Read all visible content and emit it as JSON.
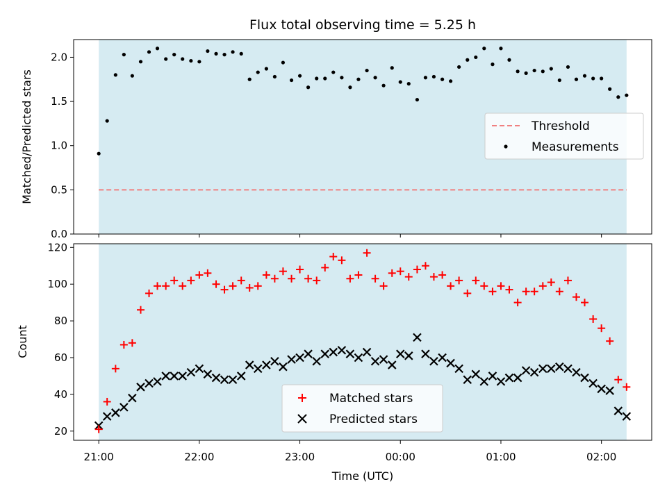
{
  "title": "Flux total observing time = 5.25 h",
  "colors": {
    "band": "#add8e6",
    "threshold": "#f08080",
    "matched": "#ff0000",
    "predicted": "#000000",
    "measurement": "#000000"
  },
  "chart_data": [
    {
      "type": "scatter",
      "ylabel": "Matched/Predicted stars",
      "xlabel": "",
      "xlim": [
        -0.25,
        5.5
      ],
      "ylim": [
        0.0,
        2.2
      ],
      "yticks": [
        "0.0",
        "0.5",
        "1.0",
        "1.5",
        "2.0"
      ],
      "shaded_interval": [
        0.0,
        5.25
      ],
      "threshold": 0.5,
      "legend": {
        "position": "center-right",
        "entries": [
          "Threshold",
          "Measurements"
        ]
      },
      "series": [
        {
          "name": "Measurements",
          "x": [
            0.0,
            0.083,
            0.167,
            0.25,
            0.333,
            0.417,
            0.5,
            0.583,
            0.667,
            0.75,
            0.833,
            0.917,
            1.0,
            1.083,
            1.167,
            1.25,
            1.333,
            1.417,
            1.5,
            1.583,
            1.667,
            1.75,
            1.833,
            1.917,
            2.0,
            2.083,
            2.167,
            2.25,
            2.333,
            2.417,
            2.5,
            2.583,
            2.667,
            2.75,
            2.833,
            2.917,
            3.0,
            3.083,
            3.167,
            3.25,
            3.333,
            3.417,
            3.5,
            3.583,
            3.667,
            3.75,
            3.833,
            3.917,
            4.0,
            4.083,
            4.167,
            4.25,
            4.333,
            4.417,
            4.5,
            4.583,
            4.667,
            4.75,
            4.833,
            4.917,
            5.0,
            5.083,
            5.167,
            5.25
          ],
          "y": [
            0.91,
            1.28,
            1.8,
            2.03,
            1.79,
            1.95,
            2.06,
            2.1,
            1.98,
            2.03,
            1.98,
            1.96,
            1.95,
            2.07,
            2.04,
            2.03,
            2.06,
            2.04,
            1.75,
            1.83,
            1.87,
            1.78,
            1.94,
            1.74,
            1.79,
            1.66,
            1.76,
            1.76,
            1.83,
            1.77,
            1.66,
            1.75,
            1.85,
            1.77,
            1.68,
            1.88,
            1.72,
            1.7,
            1.52,
            1.77,
            1.78,
            1.75,
            1.73,
            1.89,
            1.97,
            2.0,
            2.1,
            1.92,
            2.1,
            1.97,
            1.84,
            1.82,
            1.85,
            1.84,
            1.87,
            1.74,
            1.89,
            1.75,
            1.79,
            1.76,
            1.76,
            1.64,
            1.55,
            1.57
          ]
        }
      ]
    },
    {
      "type": "scatter",
      "ylabel": "Count",
      "xlabel": "Time (UTC)",
      "xlim": [
        -0.25,
        5.5
      ],
      "ylim": [
        15,
        122
      ],
      "yticks": [
        "20",
        "40",
        "60",
        "80",
        "100",
        "120"
      ],
      "xticks": [
        "21:00",
        "22:00",
        "23:00",
        "00:00",
        "01:00",
        "02:00"
      ],
      "shaded_interval": [
        0.0,
        5.25
      ],
      "legend": {
        "position": "lower-center",
        "entries": [
          "Matched stars",
          "Predicted stars"
        ]
      },
      "series": [
        {
          "name": "Matched stars",
          "x": [
            0.0,
            0.083,
            0.167,
            0.25,
            0.333,
            0.417,
            0.5,
            0.583,
            0.667,
            0.75,
            0.833,
            0.917,
            1.0,
            1.083,
            1.167,
            1.25,
            1.333,
            1.417,
            1.5,
            1.583,
            1.667,
            1.75,
            1.833,
            1.917,
            2.0,
            2.083,
            2.167,
            2.25,
            2.333,
            2.417,
            2.5,
            2.583,
            2.667,
            2.75,
            2.833,
            2.917,
            3.0,
            3.083,
            3.167,
            3.25,
            3.333,
            3.417,
            3.5,
            3.583,
            3.667,
            3.75,
            3.833,
            3.917,
            4.0,
            4.083,
            4.167,
            4.25,
            4.333,
            4.417,
            4.5,
            4.583,
            4.667,
            4.75,
            4.833,
            4.917,
            5.0,
            5.083,
            5.167,
            5.25
          ],
          "y": [
            21,
            36,
            54,
            67,
            68,
            86,
            95,
            99,
            99,
            102,
            99,
            102,
            105,
            106,
            100,
            97,
            99,
            102,
            98,
            99,
            105,
            103,
            107,
            103,
            108,
            103,
            102,
            109,
            115,
            113,
            103,
            105,
            117,
            103,
            99,
            106,
            107,
            104,
            108,
            110,
            104,
            105,
            99,
            102,
            95,
            102,
            99,
            96,
            99,
            97,
            90,
            96,
            96,
            99,
            101,
            96,
            102,
            93,
            90,
            81,
            76,
            69,
            48,
            44
          ]
        },
        {
          "name": "Predicted stars",
          "x": [
            0.0,
            0.083,
            0.167,
            0.25,
            0.333,
            0.417,
            0.5,
            0.583,
            0.667,
            0.75,
            0.833,
            0.917,
            1.0,
            1.083,
            1.167,
            1.25,
            1.333,
            1.417,
            1.5,
            1.583,
            1.667,
            1.75,
            1.833,
            1.917,
            2.0,
            2.083,
            2.167,
            2.25,
            2.333,
            2.417,
            2.5,
            2.583,
            2.667,
            2.75,
            2.833,
            2.917,
            3.0,
            3.083,
            3.167,
            3.25,
            3.333,
            3.417,
            3.5,
            3.583,
            3.667,
            3.75,
            3.833,
            3.917,
            4.0,
            4.083,
            4.167,
            4.25,
            4.333,
            4.417,
            4.5,
            4.583,
            4.667,
            4.75,
            4.833,
            4.917,
            5.0,
            5.083,
            5.167,
            5.25
          ],
          "y": [
            23,
            28,
            30,
            33,
            38,
            44,
            46,
            47,
            50,
            50,
            50,
            52,
            54,
            51,
            49,
            48,
            48,
            50,
            56,
            54,
            56,
            58,
            55,
            59,
            60,
            62,
            58,
            62,
            63,
            64,
            62,
            60,
            63,
            58,
            59,
            56,
            62,
            61,
            71,
            62,
            58,
            60,
            57,
            54,
            48,
            51,
            47,
            50,
            47,
            49,
            49,
            53,
            52,
            54,
            54,
            55,
            54,
            52,
            49,
            46,
            43,
            42,
            31,
            28
          ]
        }
      ]
    }
  ]
}
